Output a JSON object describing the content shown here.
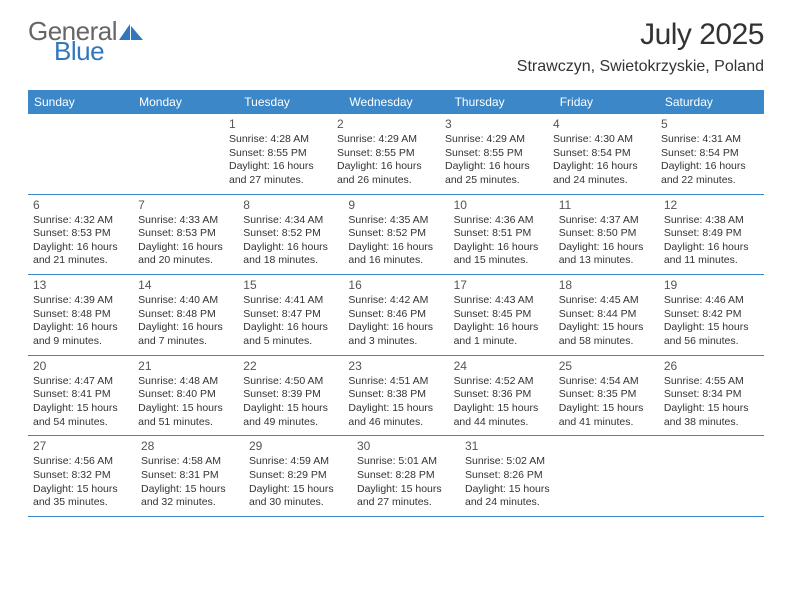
{
  "brand": {
    "text1": "General",
    "text2": "Blue",
    "icon_color": "#3277bd",
    "text1_color": "#666666",
    "text2_color": "#3277bd"
  },
  "title": "July 2025",
  "location": "Strawczyn, Swietokrzyskie, Poland",
  "header_bg": "#3b87c8",
  "header_text_color": "#ffffff",
  "border_color": "#3b87c8",
  "day_num_color": "#555555",
  "body_text_color": "#333333",
  "font_day_num": 12,
  "font_body": 10.5,
  "weekdays": [
    "Sunday",
    "Monday",
    "Tuesday",
    "Wednesday",
    "Thursday",
    "Friday",
    "Saturday"
  ],
  "weeks": [
    [
      null,
      null,
      {
        "n": "1",
        "sunrise": "4:28 AM",
        "sunset": "8:55 PM",
        "daylight": "16 hours and 27 minutes."
      },
      {
        "n": "2",
        "sunrise": "4:29 AM",
        "sunset": "8:55 PM",
        "daylight": "16 hours and 26 minutes."
      },
      {
        "n": "3",
        "sunrise": "4:29 AM",
        "sunset": "8:55 PM",
        "daylight": "16 hours and 25 minutes."
      },
      {
        "n": "4",
        "sunrise": "4:30 AM",
        "sunset": "8:54 PM",
        "daylight": "16 hours and 24 minutes."
      },
      {
        "n": "5",
        "sunrise": "4:31 AM",
        "sunset": "8:54 PM",
        "daylight": "16 hours and 22 minutes."
      }
    ],
    [
      {
        "n": "6",
        "sunrise": "4:32 AM",
        "sunset": "8:53 PM",
        "daylight": "16 hours and 21 minutes."
      },
      {
        "n": "7",
        "sunrise": "4:33 AM",
        "sunset": "8:53 PM",
        "daylight": "16 hours and 20 minutes."
      },
      {
        "n": "8",
        "sunrise": "4:34 AM",
        "sunset": "8:52 PM",
        "daylight": "16 hours and 18 minutes."
      },
      {
        "n": "9",
        "sunrise": "4:35 AM",
        "sunset": "8:52 PM",
        "daylight": "16 hours and 16 minutes."
      },
      {
        "n": "10",
        "sunrise": "4:36 AM",
        "sunset": "8:51 PM",
        "daylight": "16 hours and 15 minutes."
      },
      {
        "n": "11",
        "sunrise": "4:37 AM",
        "sunset": "8:50 PM",
        "daylight": "16 hours and 13 minutes."
      },
      {
        "n": "12",
        "sunrise": "4:38 AM",
        "sunset": "8:49 PM",
        "daylight": "16 hours and 11 minutes."
      }
    ],
    [
      {
        "n": "13",
        "sunrise": "4:39 AM",
        "sunset": "8:48 PM",
        "daylight": "16 hours and 9 minutes."
      },
      {
        "n": "14",
        "sunrise": "4:40 AM",
        "sunset": "8:48 PM",
        "daylight": "16 hours and 7 minutes."
      },
      {
        "n": "15",
        "sunrise": "4:41 AM",
        "sunset": "8:47 PM",
        "daylight": "16 hours and 5 minutes."
      },
      {
        "n": "16",
        "sunrise": "4:42 AM",
        "sunset": "8:46 PM",
        "daylight": "16 hours and 3 minutes."
      },
      {
        "n": "17",
        "sunrise": "4:43 AM",
        "sunset": "8:45 PM",
        "daylight": "16 hours and 1 minute."
      },
      {
        "n": "18",
        "sunrise": "4:45 AM",
        "sunset": "8:44 PM",
        "daylight": "15 hours and 58 minutes."
      },
      {
        "n": "19",
        "sunrise": "4:46 AM",
        "sunset": "8:42 PM",
        "daylight": "15 hours and 56 minutes."
      }
    ],
    [
      {
        "n": "20",
        "sunrise": "4:47 AM",
        "sunset": "8:41 PM",
        "daylight": "15 hours and 54 minutes."
      },
      {
        "n": "21",
        "sunrise": "4:48 AM",
        "sunset": "8:40 PM",
        "daylight": "15 hours and 51 minutes."
      },
      {
        "n": "22",
        "sunrise": "4:50 AM",
        "sunset": "8:39 PM",
        "daylight": "15 hours and 49 minutes."
      },
      {
        "n": "23",
        "sunrise": "4:51 AM",
        "sunset": "8:38 PM",
        "daylight": "15 hours and 46 minutes."
      },
      {
        "n": "24",
        "sunrise": "4:52 AM",
        "sunset": "8:36 PM",
        "daylight": "15 hours and 44 minutes."
      },
      {
        "n": "25",
        "sunrise": "4:54 AM",
        "sunset": "8:35 PM",
        "daylight": "15 hours and 41 minutes."
      },
      {
        "n": "26",
        "sunrise": "4:55 AM",
        "sunset": "8:34 PM",
        "daylight": "15 hours and 38 minutes."
      }
    ],
    [
      {
        "n": "27",
        "sunrise": "4:56 AM",
        "sunset": "8:32 PM",
        "daylight": "15 hours and 35 minutes."
      },
      {
        "n": "28",
        "sunrise": "4:58 AM",
        "sunset": "8:31 PM",
        "daylight": "15 hours and 32 minutes."
      },
      {
        "n": "29",
        "sunrise": "4:59 AM",
        "sunset": "8:29 PM",
        "daylight": "15 hours and 30 minutes."
      },
      {
        "n": "30",
        "sunrise": "5:01 AM",
        "sunset": "8:28 PM",
        "daylight": "15 hours and 27 minutes."
      },
      {
        "n": "31",
        "sunrise": "5:02 AM",
        "sunset": "8:26 PM",
        "daylight": "15 hours and 24 minutes."
      },
      null,
      null
    ]
  ]
}
